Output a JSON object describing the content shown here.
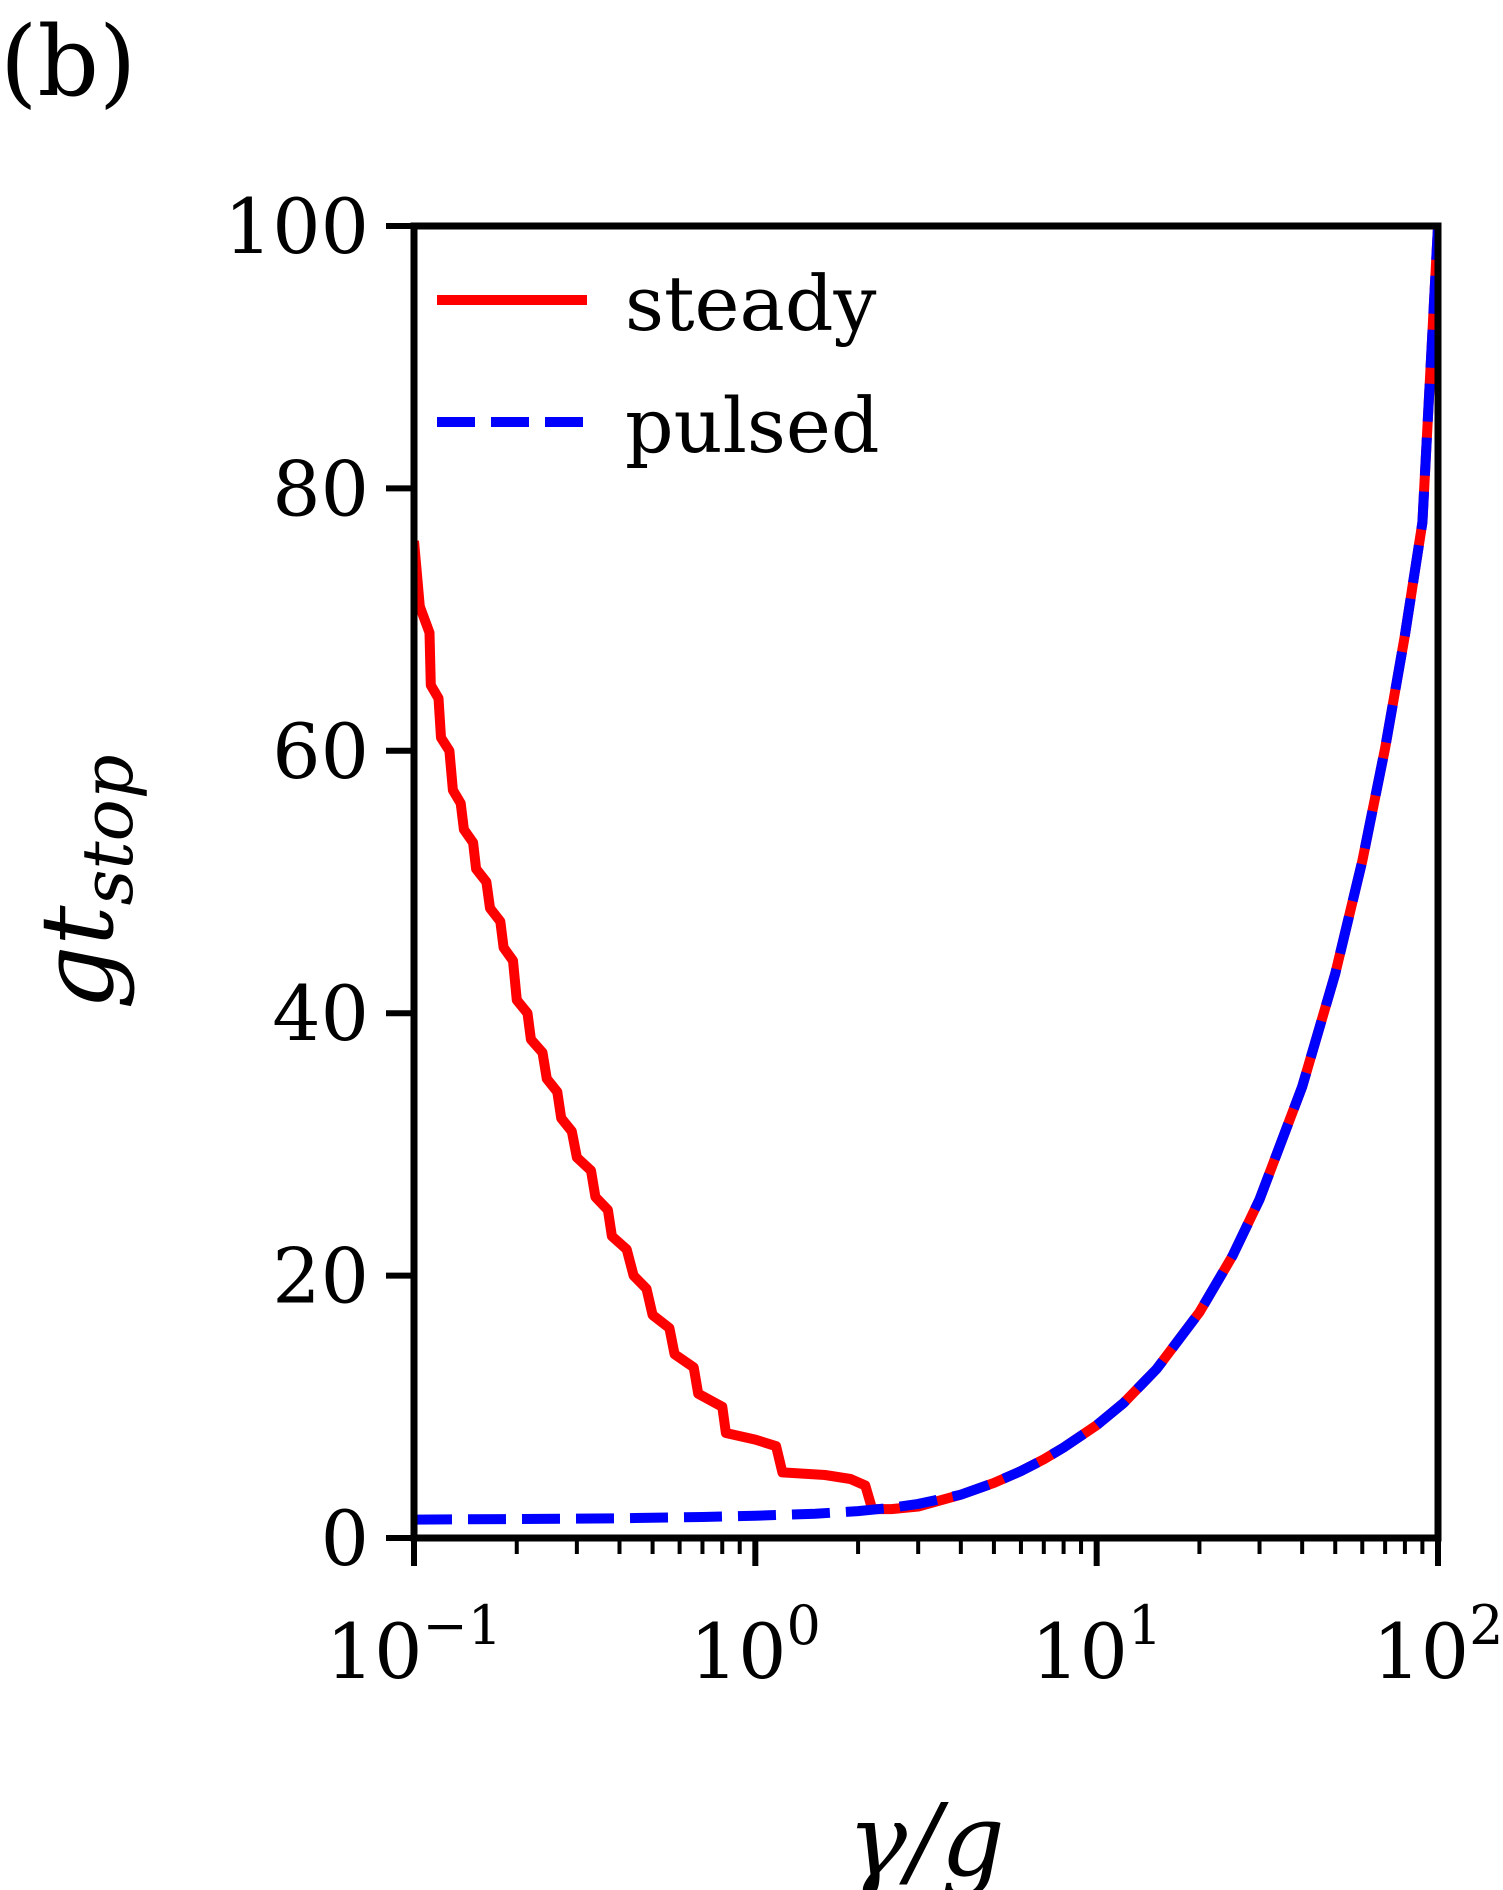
{
  "panel_label": "(b)",
  "colors": {
    "steady": "#ff0000",
    "pulsed": "#0000ff",
    "axis": "#000000"
  },
  "chart_data": {
    "type": "line",
    "title": "",
    "xlabel_symbol": "γ/g",
    "ylabel_symbol": "gt",
    "ylabel_subscript": "stop",
    "xscale": "log",
    "xlim": [
      0.1,
      100
    ],
    "ylim": [
      0,
      100
    ],
    "yticks": [
      0,
      20,
      40,
      60,
      80,
      100
    ],
    "ytick_labels": [
      "0",
      "20",
      "40",
      "60",
      "80",
      "100"
    ],
    "xticks": [
      {
        "value": 0.1,
        "base": "10",
        "exp": "−1"
      },
      {
        "value": 1,
        "base": "10",
        "exp": "0"
      },
      {
        "value": 10,
        "base": "10",
        "exp": "1"
      },
      {
        "value": 100,
        "base": "10",
        "exp": "2"
      }
    ],
    "grid": false,
    "legend_location": "upper-left",
    "series": [
      {
        "name": "steady",
        "style": "solid",
        "points": [
          [
            0.1,
            76
          ],
          [
            0.104,
            71
          ],
          [
            0.111,
            69
          ],
          [
            0.112,
            65
          ],
          [
            0.118,
            64
          ],
          [
            0.12,
            61
          ],
          [
            0.127,
            60
          ],
          [
            0.13,
            57
          ],
          [
            0.137,
            56
          ],
          [
            0.14,
            54
          ],
          [
            0.149,
            53
          ],
          [
            0.152,
            51
          ],
          [
            0.163,
            50
          ],
          [
            0.167,
            48
          ],
          [
            0.179,
            47
          ],
          [
            0.183,
            45
          ],
          [
            0.195,
            44
          ],
          [
            0.2,
            41
          ],
          [
            0.215,
            40
          ],
          [
            0.22,
            38
          ],
          [
            0.238,
            37
          ],
          [
            0.245,
            35
          ],
          [
            0.263,
            34
          ],
          [
            0.27,
            32
          ],
          [
            0.29,
            31
          ],
          [
            0.3,
            29
          ],
          [
            0.33,
            28
          ],
          [
            0.34,
            26
          ],
          [
            0.37,
            25
          ],
          [
            0.38,
            23
          ],
          [
            0.42,
            22
          ],
          [
            0.44,
            20
          ],
          [
            0.48,
            19
          ],
          [
            0.5,
            17
          ],
          [
            0.56,
            16
          ],
          [
            0.58,
            14
          ],
          [
            0.66,
            13
          ],
          [
            0.68,
            11
          ],
          [
            0.8,
            10
          ],
          [
            0.82,
            8
          ],
          [
            1.0,
            7.5
          ],
          [
            1.15,
            7
          ],
          [
            1.2,
            5
          ],
          [
            1.6,
            4.8
          ],
          [
            1.9,
            4.5
          ],
          [
            2.1,
            4
          ],
          [
            2.2,
            2.2
          ],
          [
            2.5,
            2.2
          ],
          [
            3,
            2.4
          ],
          [
            4,
            3.3
          ],
          [
            5,
            4.2
          ],
          [
            6,
            5.1
          ],
          [
            7,
            6.0
          ],
          [
            8,
            6.9
          ],
          [
            10,
            8.6
          ],
          [
            12,
            10.3
          ],
          [
            15,
            12.9
          ],
          [
            20,
            17.2
          ],
          [
            25,
            21.5
          ],
          [
            30,
            25.8
          ],
          [
            40,
            34.4
          ],
          [
            50,
            43
          ],
          [
            60,
            51.6
          ],
          [
            70,
            60.2
          ],
          [
            80,
            68.8
          ],
          [
            90,
            77.4
          ],
          [
            100,
            100
          ]
        ]
      },
      {
        "name": "pulsed",
        "style": "dashed",
        "points": [
          [
            0.1,
            1.4
          ],
          [
            0.2,
            1.45
          ],
          [
            0.4,
            1.5
          ],
          [
            0.7,
            1.6
          ],
          [
            1.0,
            1.7
          ],
          [
            1.5,
            1.85
          ],
          [
            2,
            2.05
          ],
          [
            2.5,
            2.3
          ],
          [
            3,
            2.6
          ],
          [
            4,
            3.3
          ],
          [
            5,
            4.2
          ],
          [
            6,
            5.1
          ],
          [
            7,
            6.0
          ],
          [
            8,
            6.9
          ],
          [
            10,
            8.6
          ],
          [
            12,
            10.3
          ],
          [
            15,
            12.9
          ],
          [
            20,
            17.2
          ],
          [
            25,
            21.5
          ],
          [
            30,
            25.8
          ],
          [
            40,
            34.4
          ],
          [
            50,
            43
          ],
          [
            60,
            51.6
          ],
          [
            70,
            60.2
          ],
          [
            80,
            68.8
          ],
          [
            90,
            77.4
          ],
          [
            100,
            100
          ]
        ]
      }
    ]
  }
}
